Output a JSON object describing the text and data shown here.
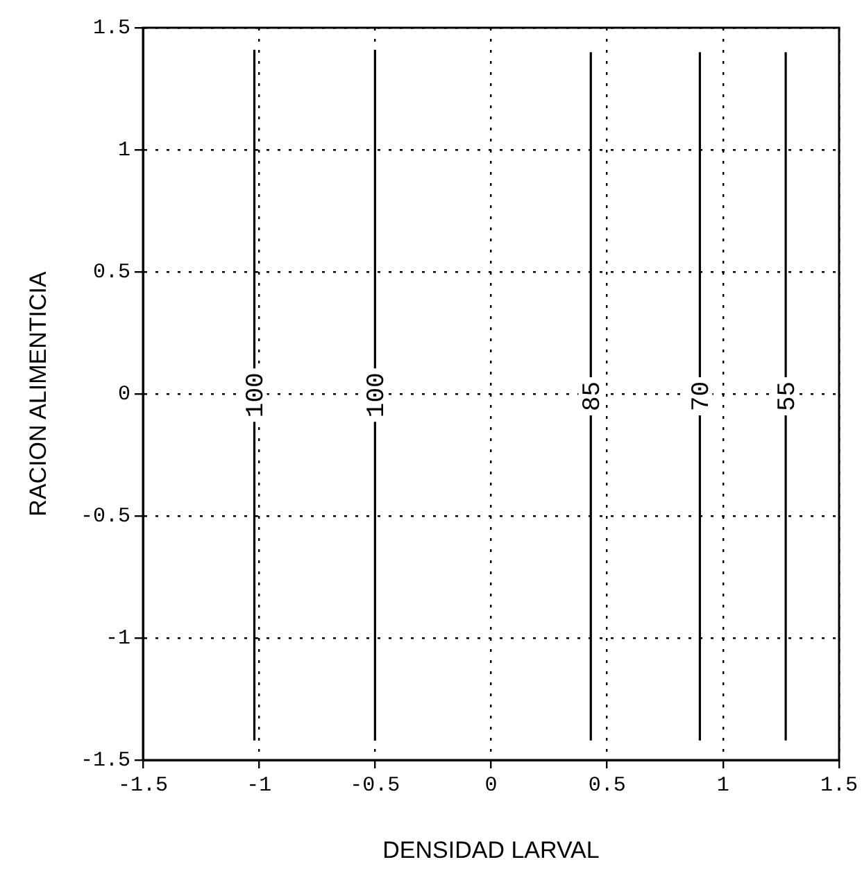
{
  "chart_data": {
    "type": "line",
    "xlabel": "DENSIDAD LARVAL",
    "ylabel": "RACION ALIMENTICIA",
    "xlim": [
      -1.5,
      1.5
    ],
    "ylim": [
      -1.5,
      1.5
    ],
    "xticks": [
      -1.5,
      -1,
      -0.5,
      0,
      0.5,
      1,
      1.5
    ],
    "yticks": [
      -1.5,
      -1,
      -0.5,
      0,
      0.5,
      1,
      1.5
    ],
    "grid": true,
    "legend": false,
    "marker": "none",
    "line_style": "solid",
    "series": [
      {
        "name": "100",
        "color": "#000000",
        "x": [
          -1.02,
          -1.02
        ],
        "values": [
          -1.42,
          1.41
        ]
      },
      {
        "name": "100",
        "color": "#000000",
        "x": [
          -0.5,
          -0.5
        ],
        "values": [
          -1.42,
          1.41
        ]
      },
      {
        "name": "85",
        "color": "#000000",
        "x": [
          0.43,
          0.43
        ],
        "values": [
          -1.42,
          1.4
        ]
      },
      {
        "name": "70",
        "color": "#000000",
        "x": [
          0.9,
          0.9
        ],
        "values": [
          -1.42,
          1.4
        ]
      },
      {
        "name": "55",
        "color": "#000000",
        "x": [
          1.27,
          1.27
        ],
        "values": [
          -1.42,
          1.4
        ]
      }
    ]
  }
}
